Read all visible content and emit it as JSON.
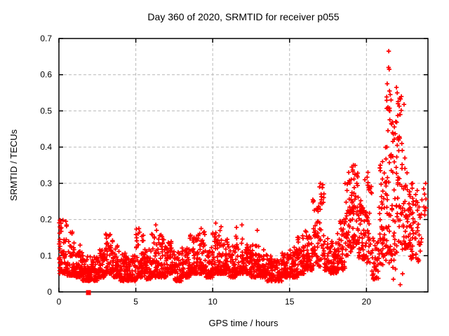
{
  "title": "Day 360 of 2020, SRMTID for receiver p055",
  "colors": {
    "marker": "#ff0000",
    "grid": "#b8b8b8",
    "axis": "#000000",
    "background": "#ffffff"
  },
  "chart_data": {
    "type": "scatter",
    "title": "Day 360 of 2020, SRMTID for receiver p055",
    "xlabel": "GPS time / hours",
    "ylabel": "SRMTID / TECUs",
    "xlim": [
      0,
      24
    ],
    "ylim": [
      0,
      0.7
    ],
    "xticks": [
      0,
      5,
      10,
      15,
      20
    ],
    "yticks": [
      0,
      0.1,
      0.2,
      0.3,
      0.4,
      0.5,
      0.6,
      0.7
    ],
    "grid": true,
    "legend": "none",
    "marker": "plus",
    "marker_color": "#ff0000",
    "seed": 20360,
    "series_name": "SRMTID",
    "band_segments_format": "[t_start_hours, t_end_hours, n_points, y_min_TECU, y_max_TECU, low_bias_exponent]",
    "band_segments": [
      [
        0.0,
        0.5,
        60,
        0.05,
        0.2,
        2.0
      ],
      [
        0.5,
        1.0,
        60,
        0.045,
        0.17,
        2.0
      ],
      [
        1.0,
        1.5,
        55,
        0.04,
        0.13,
        2.0
      ],
      [
        1.5,
        2.0,
        55,
        0.03,
        0.1,
        1.8
      ],
      [
        2.0,
        2.5,
        55,
        0.03,
        0.1,
        1.8
      ],
      [
        2.5,
        3.0,
        55,
        0.04,
        0.12,
        2.0
      ],
      [
        3.0,
        3.5,
        55,
        0.05,
        0.16,
        2.2
      ],
      [
        3.5,
        4.0,
        55,
        0.04,
        0.13,
        2.0
      ],
      [
        4.0,
        4.5,
        55,
        0.03,
        0.11,
        1.8
      ],
      [
        4.5,
        5.0,
        55,
        0.03,
        0.1,
        1.8
      ],
      [
        5.0,
        5.5,
        55,
        0.04,
        0.18,
        2.4
      ],
      [
        5.5,
        6.0,
        55,
        0.035,
        0.12,
        2.0
      ],
      [
        6.0,
        6.5,
        55,
        0.04,
        0.16,
        2.2
      ],
      [
        6.5,
        7.0,
        55,
        0.04,
        0.16,
        2.2
      ],
      [
        7.0,
        7.5,
        55,
        0.05,
        0.14,
        2.0
      ],
      [
        7.5,
        8.0,
        55,
        0.03,
        0.11,
        1.8
      ],
      [
        8.0,
        8.5,
        55,
        0.04,
        0.13,
        2.0
      ],
      [
        8.5,
        9.0,
        55,
        0.05,
        0.16,
        2.2
      ],
      [
        9.0,
        9.5,
        55,
        0.05,
        0.17,
        2.2
      ],
      [
        9.5,
        10.0,
        55,
        0.04,
        0.13,
        2.0
      ],
      [
        10.0,
        10.5,
        55,
        0.05,
        0.17,
        2.2
      ],
      [
        10.5,
        11.0,
        55,
        0.05,
        0.15,
        2.0
      ],
      [
        11.0,
        11.5,
        55,
        0.04,
        0.13,
        2.0
      ],
      [
        11.5,
        12.0,
        55,
        0.05,
        0.18,
        2.2
      ],
      [
        12.0,
        12.5,
        55,
        0.05,
        0.13,
        2.0
      ],
      [
        12.5,
        13.0,
        55,
        0.04,
        0.14,
        2.0
      ],
      [
        13.0,
        13.5,
        55,
        0.04,
        0.12,
        2.0
      ],
      [
        13.5,
        14.0,
        55,
        0.03,
        0.1,
        1.8
      ],
      [
        14.0,
        14.5,
        55,
        0.03,
        0.09,
        1.8
      ],
      [
        14.5,
        15.0,
        55,
        0.04,
        0.11,
        1.8
      ],
      [
        15.0,
        15.5,
        55,
        0.04,
        0.13,
        2.0
      ],
      [
        15.5,
        16.0,
        55,
        0.05,
        0.16,
        2.0
      ],
      [
        16.0,
        16.5,
        55,
        0.06,
        0.17,
        1.8
      ],
      [
        16.5,
        17.0,
        50,
        0.07,
        0.26,
        1.8
      ],
      [
        17.0,
        17.25,
        20,
        0.09,
        0.3,
        1.5
      ],
      [
        17.25,
        17.6,
        35,
        0.06,
        0.15,
        1.8
      ],
      [
        17.6,
        18.1,
        55,
        0.05,
        0.14,
        1.8
      ],
      [
        18.1,
        18.6,
        55,
        0.06,
        0.2,
        1.6
      ],
      [
        18.6,
        19.0,
        45,
        0.1,
        0.31,
        1.4
      ],
      [
        19.0,
        19.5,
        55,
        0.12,
        0.35,
        1.4
      ],
      [
        19.5,
        20.0,
        55,
        0.09,
        0.26,
        1.5
      ],
      [
        20.0,
        20.35,
        30,
        0.08,
        0.32,
        1.4
      ],
      [
        20.35,
        20.8,
        40,
        0.035,
        0.15,
        1.7
      ],
      [
        20.8,
        21.2,
        40,
        0.07,
        0.36,
        1.3
      ],
      [
        21.2,
        21.55,
        40,
        0.08,
        0.55,
        1.15
      ],
      [
        21.55,
        21.9,
        40,
        0.06,
        0.5,
        1.2
      ],
      [
        21.9,
        22.45,
        55,
        0.1,
        0.56,
        1.2
      ],
      [
        22.45,
        22.85,
        45,
        0.12,
        0.36,
        1.4
      ],
      [
        22.85,
        23.25,
        35,
        0.09,
        0.3,
        1.4
      ],
      [
        23.25,
        23.6,
        20,
        0.08,
        0.25,
        1.4
      ],
      [
        23.6,
        23.95,
        6,
        0.2,
        0.3,
        1.0
      ]
    ],
    "notable_points": [
      [
        0.45,
        0.195
      ],
      [
        0.5,
        0.185
      ],
      [
        3.05,
        0.16
      ],
      [
        5.2,
        0.175
      ],
      [
        5.25,
        0.165
      ],
      [
        6.3,
        0.185
      ],
      [
        6.35,
        0.17
      ],
      [
        9.25,
        0.175
      ],
      [
        10.2,
        0.19
      ],
      [
        10.55,
        0.18
      ],
      [
        11.9,
        0.185
      ],
      [
        12.9,
        0.17
      ],
      [
        16.95,
        0.29
      ],
      [
        17.0,
        0.3
      ],
      [
        17.05,
        0.27
      ],
      [
        18.85,
        0.33
      ],
      [
        19.05,
        0.345
      ],
      [
        19.15,
        0.35
      ],
      [
        19.9,
        0.31
      ],
      [
        20.1,
        0.33
      ],
      [
        20.9,
        0.35
      ],
      [
        21.05,
        0.36
      ],
      [
        21.45,
        0.665
      ],
      [
        21.44,
        0.62
      ],
      [
        21.48,
        0.615
      ],
      [
        21.35,
        0.575
      ],
      [
        21.5,
        0.555
      ],
      [
        21.55,
        0.545
      ],
      [
        21.6,
        0.53
      ],
      [
        21.95,
        0.565
      ],
      [
        22.0,
        0.55
      ],
      [
        22.05,
        0.52
      ],
      [
        22.15,
        0.535
      ],
      [
        21.4,
        0.51
      ],
      [
        21.52,
        0.5
      ],
      [
        21.62,
        0.465
      ],
      [
        21.7,
        0.44
      ],
      [
        21.9,
        0.47
      ],
      [
        22.2,
        0.49
      ],
      [
        22.3,
        0.41
      ],
      [
        21.33,
        0.4
      ],
      [
        22.0,
        0.405
      ],
      [
        22.1,
        0.39
      ],
      [
        22.5,
        0.37
      ],
      [
        21.75,
        0.035
      ],
      [
        22.2,
        0.02
      ],
      [
        22.35,
        0.05
      ],
      [
        23.0,
        0.3
      ],
      [
        23.3,
        0.28
      ],
      [
        23.72,
        0.285
      ],
      [
        23.78,
        0.27
      ],
      [
        23.85,
        0.3
      ]
    ],
    "special_points": [
      {
        "x": 1.92,
        "y": 0.0,
        "marker": "filled-square",
        "color": "#ff0000"
      }
    ]
  }
}
